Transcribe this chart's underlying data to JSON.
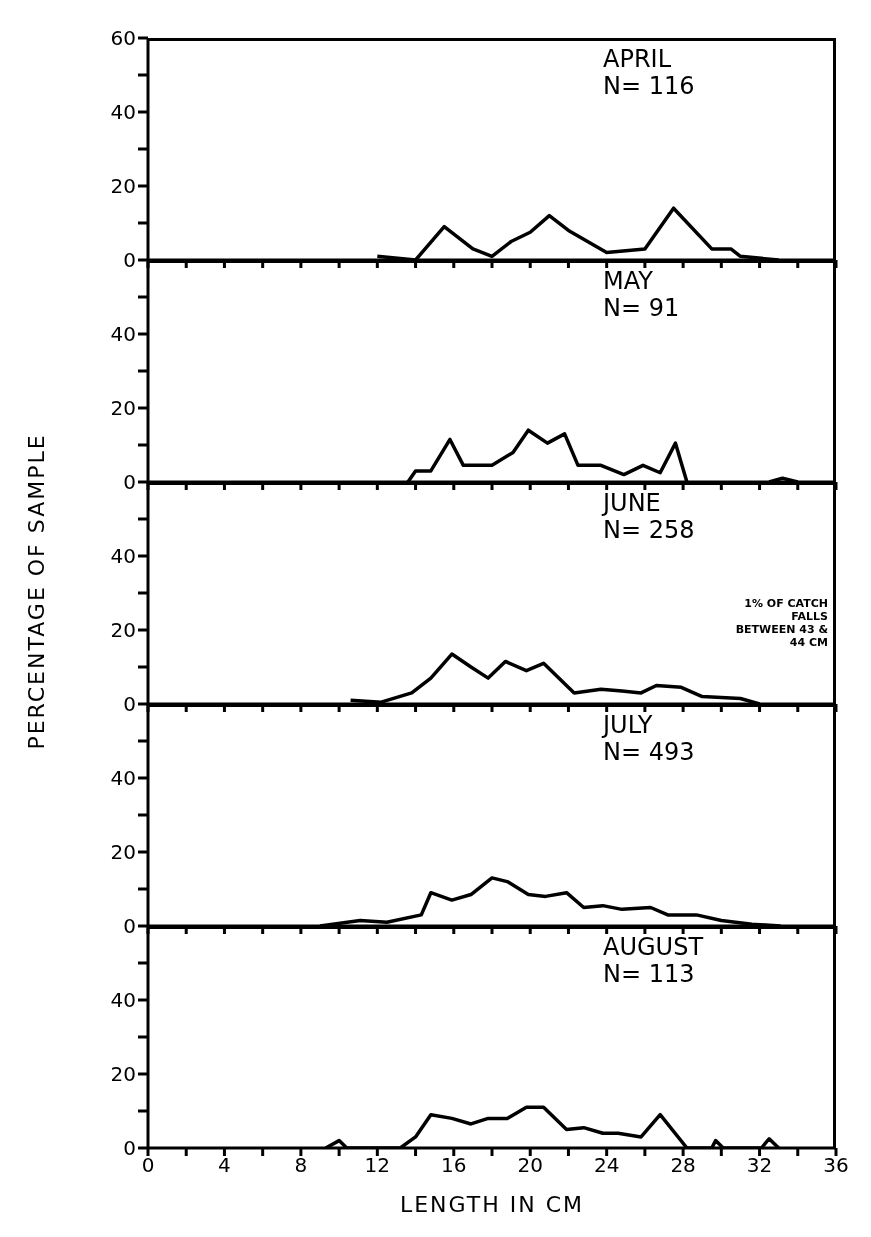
{
  "chart_data": [
    {
      "type": "line",
      "annotations": [
        "APRIL",
        "N= 116"
      ],
      "xlim": [
        0,
        36
      ],
      "ylim": [
        0,
        60
      ],
      "tick_labels": "y",
      "xticks": [
        0,
        {
          "value": 2,
          "label": null
        },
        4,
        {
          "value": 6,
          "label": null
        },
        8,
        {
          "value": 10,
          "label": null
        },
        12,
        {
          "value": 14,
          "label": null
        },
        16,
        {
          "value": 18,
          "label": null
        },
        20,
        {
          "value": 22,
          "label": null
        },
        24,
        {
          "value": 26,
          "label": null
        },
        28,
        {
          "value": 30,
          "label": null
        },
        32,
        {
          "value": 34,
          "label": null
        },
        36
      ],
      "yticks": [
        0,
        {
          "value": 10,
          "label": null
        },
        20,
        {
          "value": 30,
          "label": null
        },
        40,
        {
          "value": 50,
          "label": null
        },
        60
      ],
      "series": [
        {
          "color": "#000000",
          "x": [
            12,
            14,
            15.5,
            17,
            18,
            19,
            20,
            21,
            22,
            23,
            24,
            26,
            27.5,
            29.5,
            30.5,
            31,
            33
          ],
          "values": [
            1,
            0,
            9,
            3,
            1,
            5,
            7.5,
            12,
            8,
            5,
            2,
            3,
            14,
            3,
            3,
            1,
            0
          ]
        }
      ]
    },
    {
      "type": "line",
      "annotations": [
        "MAY",
        "N= 91"
      ],
      "xlim": [
        0,
        36
      ],
      "ylim": [
        0,
        60
      ],
      "tick_labels": "y",
      "xticks": [
        0,
        {
          "value": 2,
          "label": null
        },
        4,
        {
          "value": 6,
          "label": null
        },
        8,
        {
          "value": 10,
          "label": null
        },
        12,
        {
          "value": 14,
          "label": null
        },
        16,
        {
          "value": 18,
          "label": null
        },
        20,
        {
          "value": 22,
          "label": null
        },
        24,
        {
          "value": 26,
          "label": null
        },
        28,
        {
          "value": 30,
          "label": null
        },
        32,
        {
          "value": 34,
          "label": null
        },
        36
      ],
      "yticks": [
        0,
        {
          "value": 10,
          "label": null
        },
        20,
        {
          "value": 30,
          "label": null
        },
        40,
        {
          "value": 50,
          "label": null
        }
      ],
      "series": [
        {
          "color": "#000000",
          "x": [
            13.6,
            14,
            14.8,
            15.8,
            16.5,
            18,
            19.1,
            19.9,
            20.9,
            21.8,
            22.5,
            23.7,
            24.9,
            25.9,
            26.8,
            27.6,
            28.2,
            30,
            32.5,
            33.2,
            34
          ],
          "values": [
            0,
            3,
            3,
            11.5,
            4.5,
            4.5,
            8,
            14,
            10.5,
            13,
            4.5,
            4.5,
            2,
            4.5,
            2.5,
            10.5,
            0,
            null,
            0,
            1,
            0
          ]
        }
      ]
    },
    {
      "type": "line",
      "annotations": [
        "JUNE",
        "N= 258",
        "1% OF CATCH FALLS BETWEEN 43 & 44 CM"
      ],
      "ylabel": "PERCENTAGE OF SAMPLE",
      "xlim": [
        0,
        36
      ],
      "ylim": [
        0,
        60
      ],
      "tick_labels": "y",
      "xticks": [
        0,
        {
          "value": 2,
          "label": null
        },
        4,
        {
          "value": 6,
          "label": null
        },
        8,
        {
          "value": 10,
          "label": null
        },
        12,
        {
          "value": 14,
          "label": null
        },
        16,
        {
          "value": 18,
          "label": null
        },
        20,
        {
          "value": 22,
          "label": null
        },
        24,
        {
          "value": 26,
          "label": null
        },
        28,
        {
          "value": 30,
          "label": null
        },
        32,
        {
          "value": 34,
          "label": null
        },
        36
      ],
      "yticks": [
        0,
        {
          "value": 10,
          "label": null
        },
        20,
        {
          "value": 30,
          "label": null
        },
        40,
        {
          "value": 50,
          "label": null
        }
      ],
      "series": [
        {
          "color": "#000000",
          "x": [
            10.6,
            12.2,
            13.8,
            14.8,
            15.9,
            16.9,
            17.8,
            18.7,
            19.8,
            20.7,
            22.3,
            23.7,
            24.8,
            25.8,
            26.6,
            27.9,
            29,
            31,
            32
          ],
          "values": [
            1,
            0.5,
            3,
            7,
            13.5,
            10,
            7,
            11.5,
            9,
            11,
            3,
            4,
            3.5,
            3,
            5,
            4.5,
            2,
            1.5,
            0
          ]
        }
      ]
    },
    {
      "type": "line",
      "annotations": [
        "JULY",
        "N= 493"
      ],
      "xlim": [
        0,
        36
      ],
      "ylim": [
        0,
        60
      ],
      "tick_labels": "y",
      "xticks": [
        0,
        {
          "value": 2,
          "label": null
        },
        4,
        {
          "value": 6,
          "label": null
        },
        8,
        {
          "value": 10,
          "label": null
        },
        12,
        {
          "value": 14,
          "label": null
        },
        16,
        {
          "value": 18,
          "label": null
        },
        20,
        {
          "value": 22,
          "label": null
        },
        24,
        {
          "value": 26,
          "label": null
        },
        28,
        {
          "value": 30,
          "label": null
        },
        32,
        {
          "value": 34,
          "label": null
        },
        36
      ],
      "yticks": [
        0,
        {
          "value": 10,
          "label": null
        },
        20,
        {
          "value": 30,
          "label": null
        },
        40,
        {
          "value": 50,
          "label": null
        }
      ],
      "series": [
        {
          "color": "#000000",
          "x": [
            9,
            11.1,
            12.5,
            14.3,
            14.8,
            15.9,
            16.9,
            18,
            18.8,
            19.9,
            20.8,
            21.9,
            22.8,
            23.8,
            24.8,
            26.3,
            27.2,
            28.7,
            30,
            31.6,
            33.1
          ],
          "values": [
            0,
            1.5,
            1,
            3,
            9,
            7,
            8.5,
            13,
            12,
            8.5,
            8,
            9,
            5,
            5.5,
            4.5,
            5,
            3,
            3,
            1.5,
            0.5,
            0
          ]
        }
      ]
    },
    {
      "type": "line",
      "annotations": [
        "AUGUST",
        "N= 113"
      ],
      "xlabel": "LENGTH IN CM",
      "xlim": [
        0,
        36
      ],
      "ylim": [
        0,
        60
      ],
      "xticks": [
        0,
        {
          "value": 2,
          "label": null
        },
        4,
        {
          "value": 6,
          "label": null
        },
        8,
        {
          "value": 10,
          "label": null
        },
        12,
        {
          "value": 14,
          "label": null
        },
        16,
        {
          "value": 18,
          "label": null
        },
        20,
        {
          "value": 22,
          "label": null
        },
        24,
        {
          "value": 26,
          "label": null
        },
        28,
        {
          "value": 30,
          "label": null
        },
        32,
        {
          "value": 34,
          "label": null
        },
        36
      ],
      "yticks": [
        0,
        {
          "value": 10,
          "label": null
        },
        20,
        {
          "value": 30,
          "label": null
        },
        40,
        {
          "value": 50,
          "label": null
        }
      ],
      "series": [
        {
          "color": "#000000",
          "x": [
            9.3,
            10,
            10.4,
            13.2,
            14,
            14.8,
            15.9,
            16.9,
            17.8,
            18.8,
            19.8,
            20.7,
            21.9,
            22.8,
            23.8,
            24.6,
            25.8,
            26.8,
            28.2,
            29.5,
            29.7,
            30.1,
            32.1,
            32.5,
            33
          ],
          "values": [
            0,
            2,
            0,
            0,
            3,
            9,
            8,
            6.5,
            8,
            8,
            11,
            11,
            5,
            5.5,
            4,
            4,
            3,
            9,
            0,
            0,
            2,
            0,
            0,
            2.5,
            0
          ]
        }
      ]
    }
  ]
}
